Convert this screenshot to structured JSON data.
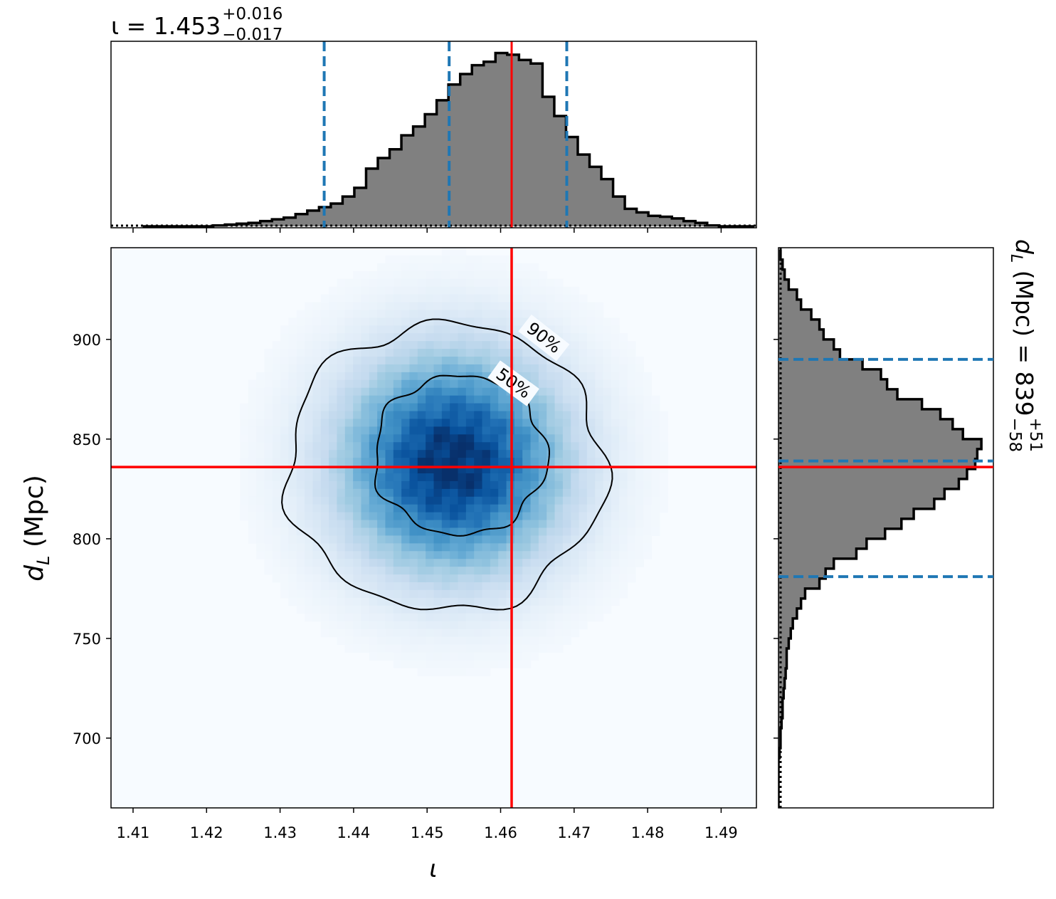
{
  "chart_data": {
    "type": "corner",
    "panels": {
      "marginal_x": {
        "type": "histogram",
        "param": "ι",
        "title": {
          "prefix": "ι = ",
          "median": "1.453",
          "plus": "+0.016",
          "minus": "−0.017"
        },
        "median": 1.453,
        "lower": 1.436,
        "upper": 1.469,
        "truth": 1.4615,
        "bins_left": [
          1.4113,
          1.4129,
          1.4145,
          1.4161,
          1.4177,
          1.4193,
          1.4209,
          1.4225,
          1.4241,
          1.4257,
          1.4273,
          1.4289,
          1.4305,
          1.4321,
          1.4337,
          1.4353,
          1.4369,
          1.4385,
          1.4401,
          1.4417,
          1.4433,
          1.4449,
          1.4465,
          1.4481,
          1.4497,
          1.4513,
          1.4529,
          1.4545,
          1.4561,
          1.4577,
          1.4593,
          1.4609,
          1.4625,
          1.4641,
          1.4657,
          1.4673,
          1.4689,
          1.4705,
          1.4721,
          1.4737,
          1.4753,
          1.4769,
          1.4785,
          1.4801,
          1.4817,
          1.4833,
          1.4849,
          1.4865,
          1.4881,
          1.4897,
          1.4913,
          1.4929
        ],
        "bin_width": 0.0016,
        "heights": [
          0.0,
          0.0,
          0.0,
          0.0,
          0.0,
          0.0,
          0.005,
          0.01,
          0.015,
          0.02,
          0.03,
          0.04,
          0.05,
          0.07,
          0.09,
          0.11,
          0.13,
          0.17,
          0.22,
          0.33,
          0.39,
          0.44,
          0.52,
          0.57,
          0.64,
          0.72,
          0.81,
          0.87,
          0.92,
          0.94,
          0.99,
          0.98,
          0.95,
          0.93,
          0.74,
          0.63,
          0.51,
          0.41,
          0.34,
          0.27,
          0.17,
          0.1,
          0.08,
          0.06,
          0.055,
          0.045,
          0.03,
          0.02,
          0.005,
          0.0,
          0.0,
          0.0
        ],
        "xlim": [
          1.407,
          1.4948
        ],
        "ylim": [
          0,
          1.0
        ]
      },
      "joint": {
        "type": "heatmap",
        "xlabel": "ι",
        "ylabel": "dL (Mpc)",
        "xlim": [
          1.407,
          1.4948
        ],
        "ylim": [
          665,
          946
        ],
        "xticks": [
          "1.41",
          "1.42",
          "1.43",
          "1.44",
          "1.45",
          "1.46",
          "1.47",
          "1.48",
          "1.49"
        ],
        "xtick_values": [
          1.41,
          1.42,
          1.43,
          1.44,
          1.45,
          1.46,
          1.47,
          1.48,
          1.49
        ],
        "yticks": [
          "700",
          "750",
          "800",
          "850",
          "900"
        ],
        "ytick_values": [
          700,
          750,
          800,
          850,
          900
        ],
        "peak": {
          "x": 1.4535,
          "y": 838
        },
        "sigma": {
          "x": 0.0105,
          "y": 38
        },
        "contours": [
          {
            "label": "90%",
            "center_x": 1.4525,
            "center_y": 836,
            "radius_x": 0.0216,
            "radius_y": 72
          },
          {
            "label": "50%",
            "center_x": 1.4545,
            "center_y": 842,
            "radius_x": 0.0117,
            "radius_y": 40
          }
        ],
        "truth": {
          "x": 1.4615,
          "y": 836
        },
        "colormap": "Blues"
      },
      "marginal_y": {
        "type": "histogram",
        "orientation": "horizontal",
        "param": "dL",
        "title": {
          "prefix": "dL (Mpc) = ",
          "median": "839",
          "plus": "+51",
          "minus": "−58"
        },
        "median": 839,
        "lower": 781,
        "upper": 890,
        "truth": 836,
        "ylim": [
          665,
          946
        ],
        "bins_bottom": [
          665,
          670,
          675,
          680,
          685,
          690,
          695,
          700,
          705,
          710,
          715,
          720,
          725,
          730,
          735,
          740,
          745,
          750,
          755,
          760,
          765,
          770,
          775,
          780,
          785,
          790,
          795,
          800,
          805,
          810,
          815,
          820,
          825,
          830,
          835,
          840,
          845,
          850,
          855,
          860,
          865,
          870,
          875,
          880,
          885,
          890,
          895,
          900,
          905,
          910,
          915,
          920,
          925,
          930,
          935,
          940
        ],
        "bin_height": 5,
        "lengths": [
          0.0,
          0.0,
          0.0,
          0.0,
          0.0,
          0.005,
          0.01,
          0.01,
          0.015,
          0.02,
          0.02,
          0.025,
          0.03,
          0.035,
          0.04,
          0.04,
          0.05,
          0.06,
          0.07,
          0.09,
          0.11,
          0.13,
          0.2,
          0.23,
          0.27,
          0.38,
          0.43,
          0.52,
          0.6,
          0.66,
          0.76,
          0.81,
          0.88,
          0.92,
          0.96,
          0.97,
          0.99,
          0.9,
          0.85,
          0.79,
          0.7,
          0.58,
          0.53,
          0.5,
          0.41,
          0.3,
          0.27,
          0.22,
          0.2,
          0.16,
          0.11,
          0.09,
          0.05,
          0.03,
          0.02,
          0.01
        ],
        "xlim": [
          0,
          1.0
        ]
      }
    }
  }
}
